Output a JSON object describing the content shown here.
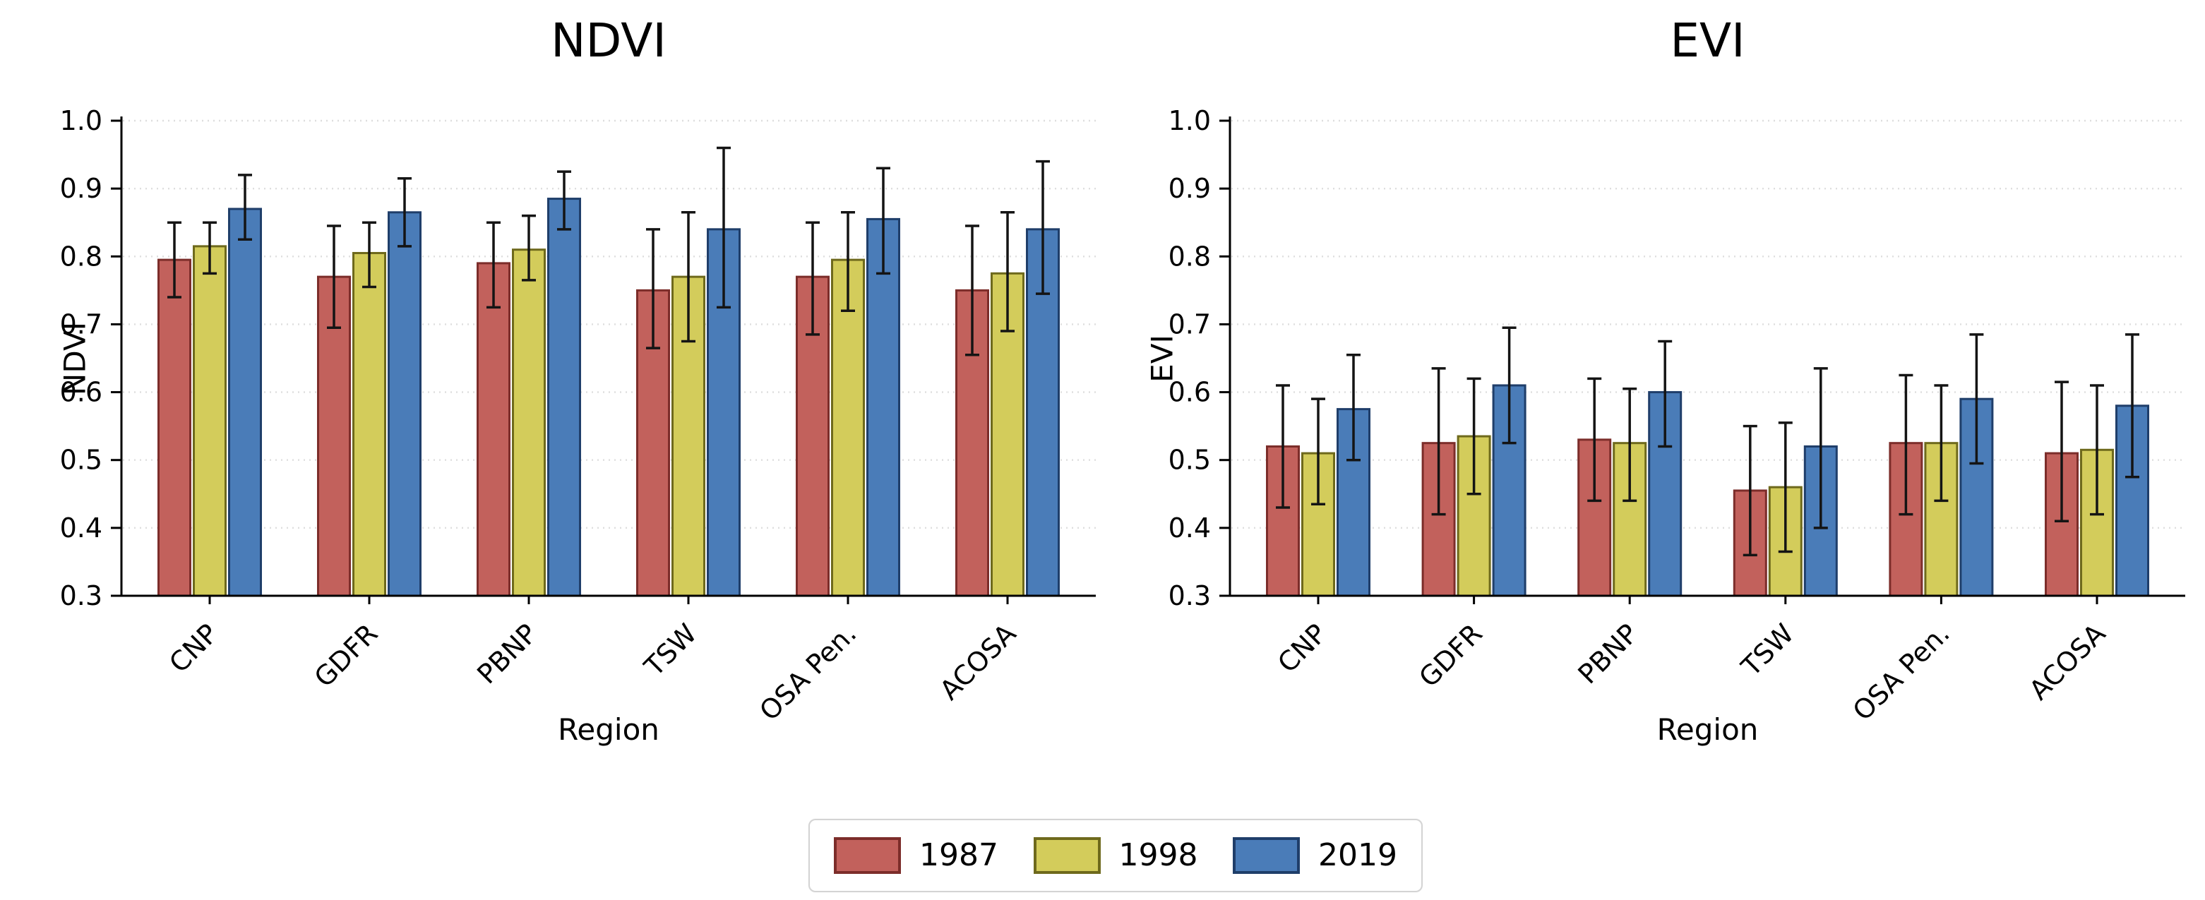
{
  "figure": {
    "background": "#ffffff",
    "error_bar_color": "#141414",
    "gridline_color": "#dedede",
    "legend": {
      "entries": [
        {
          "label": "1987",
          "fill": "#c2615c",
          "edge": "#7c2d2a"
        },
        {
          "label": "1998",
          "fill": "#d3cc5b",
          "edge": "#6e691c"
        },
        {
          "label": "2019",
          "fill": "#4a7cb8",
          "edge": "#1f3e6a"
        }
      ]
    }
  },
  "chart_data": [
    {
      "type": "bar",
      "title": "NDVI",
      "xlabel": "Region",
      "ylabel": "NDVI",
      "ylim": [
        0.3,
        1.0
      ],
      "yticks": [
        "0.3",
        "0.4",
        "0.5",
        "0.6",
        "0.7",
        "0.8",
        "0.9",
        "1.0"
      ],
      "grid": "horizontal-dotted",
      "legend_position": "figure-bottom-center",
      "categories": [
        "CNP",
        "GDFR",
        "PBNP",
        "TSW",
        "OSA Pen.",
        "ACOSA"
      ],
      "series": [
        {
          "name": "1987",
          "fill": "#c2615c",
          "edge": "#7c2d2a",
          "values": [
            0.795,
            0.77,
            0.79,
            0.75,
            0.77,
            0.75
          ],
          "err_low": [
            0.74,
            0.695,
            0.725,
            0.665,
            0.685,
            0.655
          ],
          "err_high": [
            0.85,
            0.845,
            0.85,
            0.84,
            0.85,
            0.845
          ]
        },
        {
          "name": "1998",
          "fill": "#d3cc5b",
          "edge": "#6e691c",
          "values": [
            0.815,
            0.805,
            0.81,
            0.77,
            0.795,
            0.775
          ],
          "err_low": [
            0.775,
            0.755,
            0.765,
            0.675,
            0.72,
            0.69
          ],
          "err_high": [
            0.85,
            0.85,
            0.86,
            0.865,
            0.865,
            0.865
          ]
        },
        {
          "name": "2019",
          "fill": "#4a7cb8",
          "edge": "#1f3e6a",
          "values": [
            0.87,
            0.865,
            0.885,
            0.84,
            0.855,
            0.84
          ],
          "err_low": [
            0.825,
            0.815,
            0.84,
            0.725,
            0.775,
            0.745
          ],
          "err_high": [
            0.92,
            0.915,
            0.925,
            0.96,
            0.93,
            0.94
          ]
        }
      ]
    },
    {
      "type": "bar",
      "title": "EVI",
      "xlabel": "Region",
      "ylabel": "EVI",
      "ylim": [
        0.3,
        1.0
      ],
      "yticks": [
        "0.3",
        "0.4",
        "0.5",
        "0.6",
        "0.7",
        "0.8",
        "0.9",
        "1.0"
      ],
      "grid": "horizontal-dotted",
      "legend_position": "figure-bottom-center",
      "categories": [
        "CNP",
        "GDFR",
        "PBNP",
        "TSW",
        "OSA Pen.",
        "ACOSA"
      ],
      "series": [
        {
          "name": "1987",
          "fill": "#c2615c",
          "edge": "#7c2d2a",
          "values": [
            0.52,
            0.525,
            0.53,
            0.455,
            0.525,
            0.51
          ],
          "err_low": [
            0.43,
            0.42,
            0.44,
            0.36,
            0.42,
            0.41
          ],
          "err_high": [
            0.61,
            0.635,
            0.62,
            0.55,
            0.625,
            0.615
          ]
        },
        {
          "name": "1998",
          "fill": "#d3cc5b",
          "edge": "#6e691c",
          "values": [
            0.51,
            0.535,
            0.525,
            0.46,
            0.525,
            0.515
          ],
          "err_low": [
            0.435,
            0.45,
            0.44,
            0.365,
            0.44,
            0.42
          ],
          "err_high": [
            0.59,
            0.62,
            0.605,
            0.555,
            0.61,
            0.61
          ]
        },
        {
          "name": "2019",
          "fill": "#4a7cb8",
          "edge": "#1f3e6a",
          "values": [
            0.575,
            0.61,
            0.6,
            0.52,
            0.59,
            0.58
          ],
          "err_low": [
            0.5,
            0.525,
            0.52,
            0.4,
            0.495,
            0.475
          ],
          "err_high": [
            0.655,
            0.695,
            0.675,
            0.635,
            0.685,
            0.685
          ]
        }
      ]
    }
  ]
}
